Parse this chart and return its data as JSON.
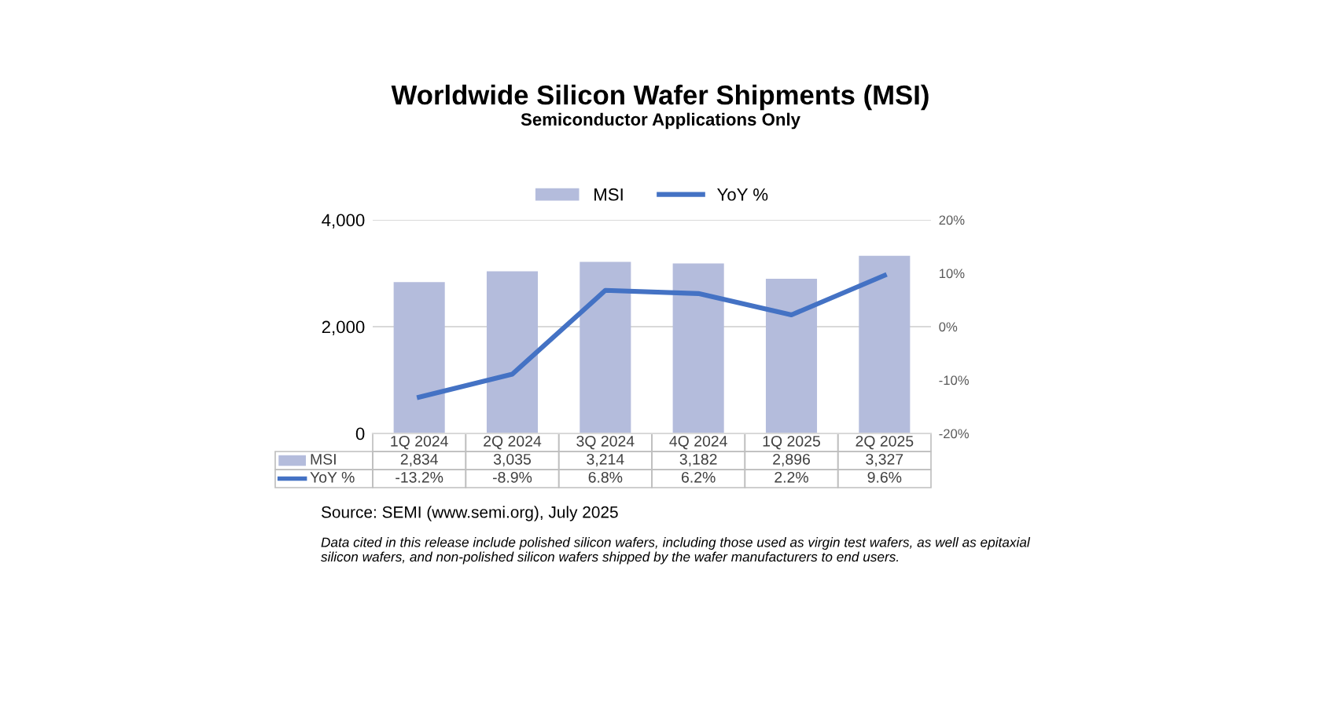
{
  "chart_data": {
    "type": "bar",
    "title": "Worldwide Silicon Wafer Shipments (MSI)",
    "subtitle": "Semiconductor Applications Only",
    "categories": [
      "1Q 2024",
      "2Q 2024",
      "3Q 2024",
      "4Q 2024",
      "1Q 2025",
      "2Q 2025"
    ],
    "series": [
      {
        "name": "MSI",
        "color": "#b4bcdc",
        "values": [
          2834,
          3035,
          3214,
          3182,
          2896,
          3327
        ],
        "value_labels": [
          "2,834",
          "3,035",
          "3,214",
          "3,182",
          "2,896",
          "3,327"
        ]
      },
      {
        "name": "YoY %",
        "type": "line",
        "axis": "y2",
        "color": "#4472c4",
        "values": [
          -13.2,
          -8.9,
          6.8,
          6.2,
          2.2,
          9.6
        ],
        "value_labels": [
          "-13.2%",
          "-8.9%",
          "6.8%",
          "6.2%",
          "2.2%",
          "9.6%"
        ]
      }
    ],
    "ylim": [
      0,
      4000
    ],
    "yticks": [
      0,
      {
        "value": 2000,
        "label": "2,000"
      },
      {
        "value": 4000,
        "label": "4,000"
      }
    ],
    "y2lim": [
      -20,
      20
    ],
    "y2ticks": [
      {
        "value": -20,
        "label": "-20%"
      },
      {
        "value": -10,
        "label": "-10%"
      },
      {
        "value": 0,
        "label": "0%"
      },
      {
        "value": 10,
        "label": "10%"
      },
      {
        "value": 20,
        "label": "20%"
      }
    ],
    "grid": "y",
    "legend": "top",
    "marker": "none",
    "line_style": "solid",
    "annotations": [
      "Source: SEMI (www.semi.org), July 2025",
      "Data cited in this release include polished silicon wafers, including those used as virgin test wafers, as well as epitaxial silicon wafers, and non-polished silicon wafers shipped by the wafer manufacturers to end users."
    ]
  }
}
